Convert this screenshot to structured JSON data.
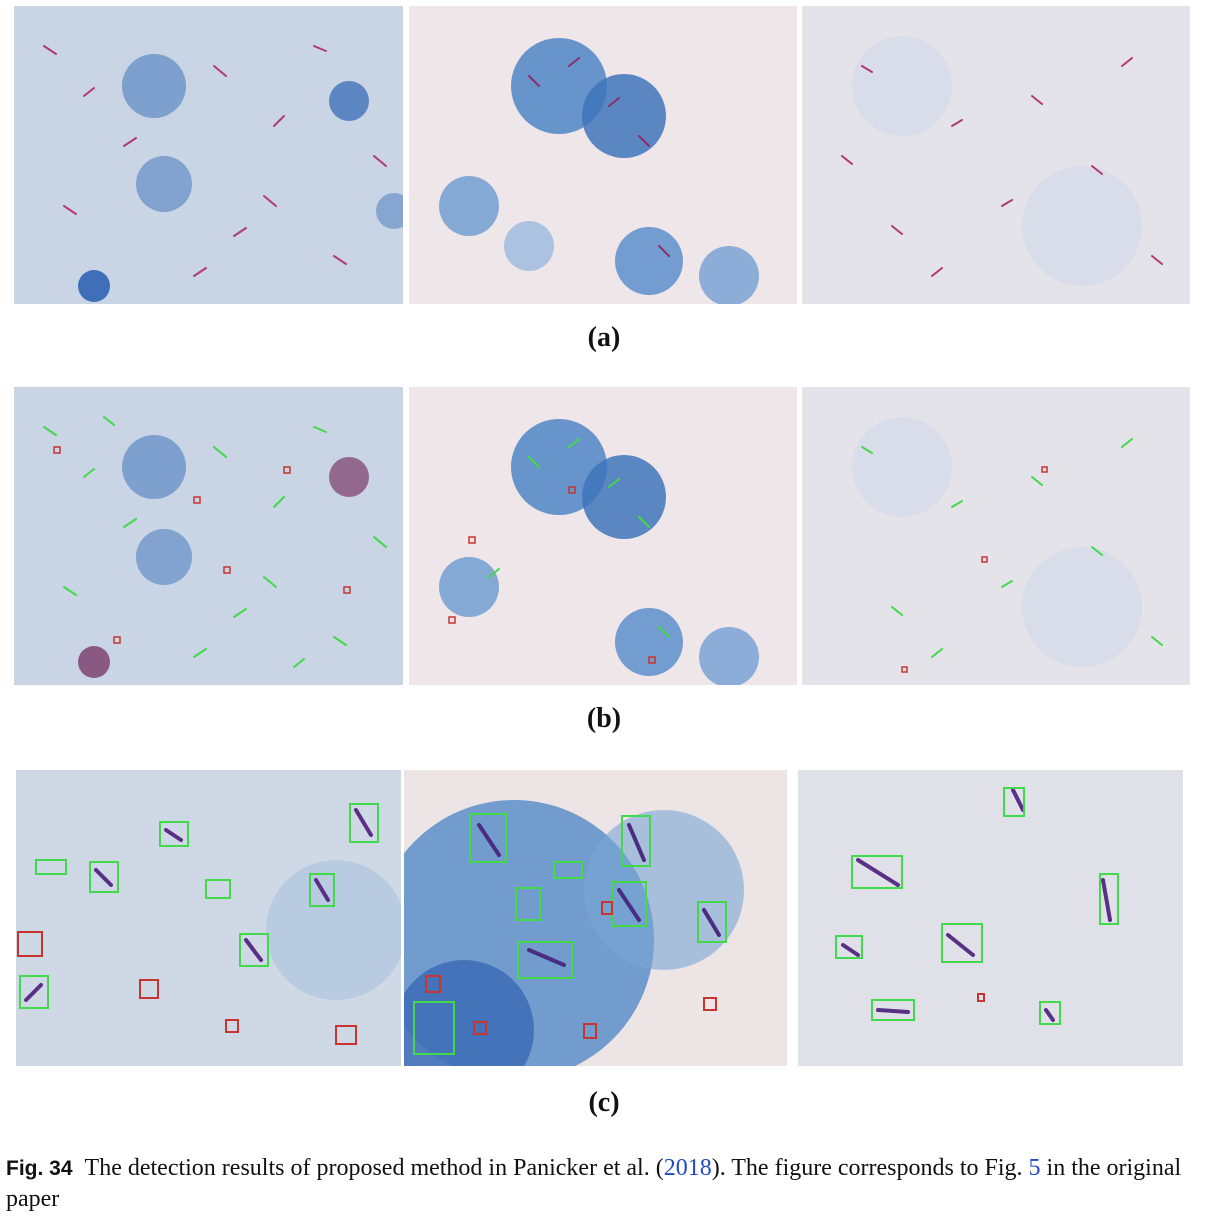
{
  "figure": {
    "sublabels": [
      "(a)",
      "(b)",
      "(c)"
    ],
    "caption": {
      "fig_label": "Fig. 34",
      "text_before": "The detection results of proposed method in Panicker et al. (",
      "ref_year": "2018",
      "text_middle": "). The figure corresponds to Fig. ",
      "ref_fig": "5",
      "text_after": " in the original paper"
    }
  },
  "colors": {
    "bg_light": "#e6e2ea",
    "stain_blue": "#5c8cc4",
    "bacilli_pink": "#b23a72",
    "box_green": "#42d94a",
    "box_red": "#c8352e",
    "link_blue": "#1f49c9"
  }
}
